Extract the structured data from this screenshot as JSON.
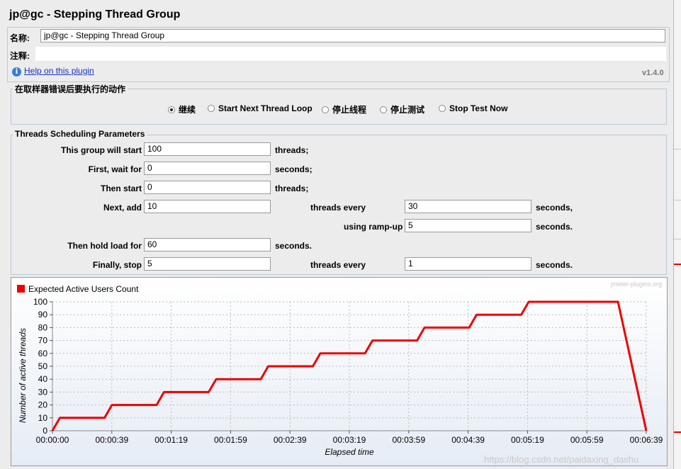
{
  "window": {
    "title": "jp@gc - Stepping Thread Group"
  },
  "form": {
    "name_label": "名称:",
    "name_value": "jp@gc - Stepping Thread Group",
    "comment_label": "注释:",
    "comment_value": "",
    "help_icon": "info-icon",
    "help_link": "Help on this plugin",
    "version": "v1.4.0"
  },
  "on_error": {
    "legend": "在取样器错误后要执行的动作",
    "options": [
      {
        "label": "继续",
        "selected": true
      },
      {
        "label": "Start Next Thread Loop",
        "selected": false
      },
      {
        "label": "停止线程",
        "selected": false
      },
      {
        "label": "停止测试",
        "selected": false
      },
      {
        "label": "Stop Test Now",
        "selected": false
      }
    ]
  },
  "scheduling": {
    "legend": "Threads Scheduling Parameters",
    "start_label": "This group will start",
    "start_value": "100",
    "start_unit": "threads;",
    "wait_label": "First, wait for",
    "wait_value": "0",
    "wait_unit": "seconds;",
    "then_start_label": "Then start",
    "then_start_value": "0",
    "then_start_unit": "threads;",
    "next_add_label": "Next, add",
    "next_add_value": "10",
    "next_add_mid": "threads every",
    "next_add_every_value": "30",
    "next_add_unit": "seconds,",
    "rampup_label": "using ramp-up",
    "rampup_value": "5",
    "rampup_unit": "seconds.",
    "hold_label": "Then hold load for",
    "hold_value": "60",
    "hold_unit": "seconds.",
    "stop_label": "Finally, stop",
    "stop_value": "5",
    "stop_mid": "threads every",
    "stop_every_value": "1",
    "stop_unit": "seconds."
  },
  "chart_data": {
    "type": "line",
    "title": "",
    "legend": "Expected Active Users Count",
    "legend_color": "#ee0000",
    "branding": "jmeter-plugins.org",
    "xlabel": "Elapsed time",
    "ylabel": "Number of active threads",
    "ylim": [
      0,
      100
    ],
    "xlim_seconds": [
      0,
      399
    ],
    "y_ticks": [
      "0",
      "10",
      "20",
      "30",
      "40",
      "50",
      "60",
      "70",
      "80",
      "90",
      "100"
    ],
    "x_ticks": [
      "00:00:00",
      "00:00:39",
      "00:01:19",
      "00:01:59",
      "00:02:39",
      "00:03:19",
      "00:03:59",
      "00:04:39",
      "00:05:19",
      "00:05:59",
      "00:06:39"
    ],
    "grid": true,
    "legend_position": "top-left",
    "series": [
      {
        "name": "Expected Active Users Count",
        "color": "#ee0000",
        "x": [
          0,
          5,
          35,
          40,
          70,
          75,
          105,
          110,
          140,
          145,
          175,
          180,
          210,
          215,
          245,
          250,
          280,
          285,
          315,
          320,
          380,
          399
        ],
        "y": [
          0,
          10,
          10,
          20,
          20,
          30,
          30,
          40,
          40,
          50,
          50,
          60,
          60,
          70,
          70,
          80,
          80,
          90,
          90,
          100,
          100,
          0
        ]
      }
    ]
  },
  "footer": {
    "watermark": "https://blog.csdn.net/paidaxing_dashu"
  }
}
